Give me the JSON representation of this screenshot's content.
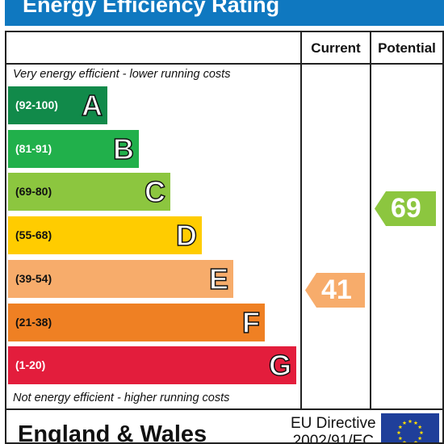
{
  "header": {
    "title": "Energy Efficiency Rating"
  },
  "columns": {
    "current": "Current",
    "potential": "Potential"
  },
  "notes": {
    "top": "Very energy efficient - lower running costs",
    "bottom": "Not energy efficient - higher running costs"
  },
  "bands": [
    {
      "range": "(92-100)",
      "letter": "A",
      "color": "#118a4a",
      "range_color": "#ffffff"
    },
    {
      "range": "(81-91)",
      "letter": "B",
      "color": "#21b04b",
      "range_color": "#ffffff"
    },
    {
      "range": "(69-80)",
      "letter": "C",
      "color": "#8cc63f",
      "range_color": "#111111"
    },
    {
      "range": "(55-68)",
      "letter": "D",
      "color": "#ffcc00",
      "range_color": "#111111"
    },
    {
      "range": "(39-54)",
      "letter": "E",
      "color": "#f7ac6b",
      "range_color": "#111111"
    },
    {
      "range": "(21-38)",
      "letter": "F",
      "color": "#ef8023",
      "range_color": "#111111"
    },
    {
      "range": "(1-20)",
      "letter": "G",
      "color": "#e31d3c",
      "range_color": "#ffffff"
    }
  ],
  "ratings": {
    "current": {
      "value": "41",
      "band": "E",
      "color": "#f7ac6b"
    },
    "potential": {
      "value": "69",
      "band": "C",
      "color": "#8cc63f"
    }
  },
  "footer": {
    "country": "England & Wales",
    "directive_line1": "EU Directive",
    "directive_line2": "2002/91/EC"
  },
  "colors": {
    "header": "#0f78c0",
    "eu_flag": "#1f3f9a",
    "eu_stars": "#ffdd00"
  }
}
